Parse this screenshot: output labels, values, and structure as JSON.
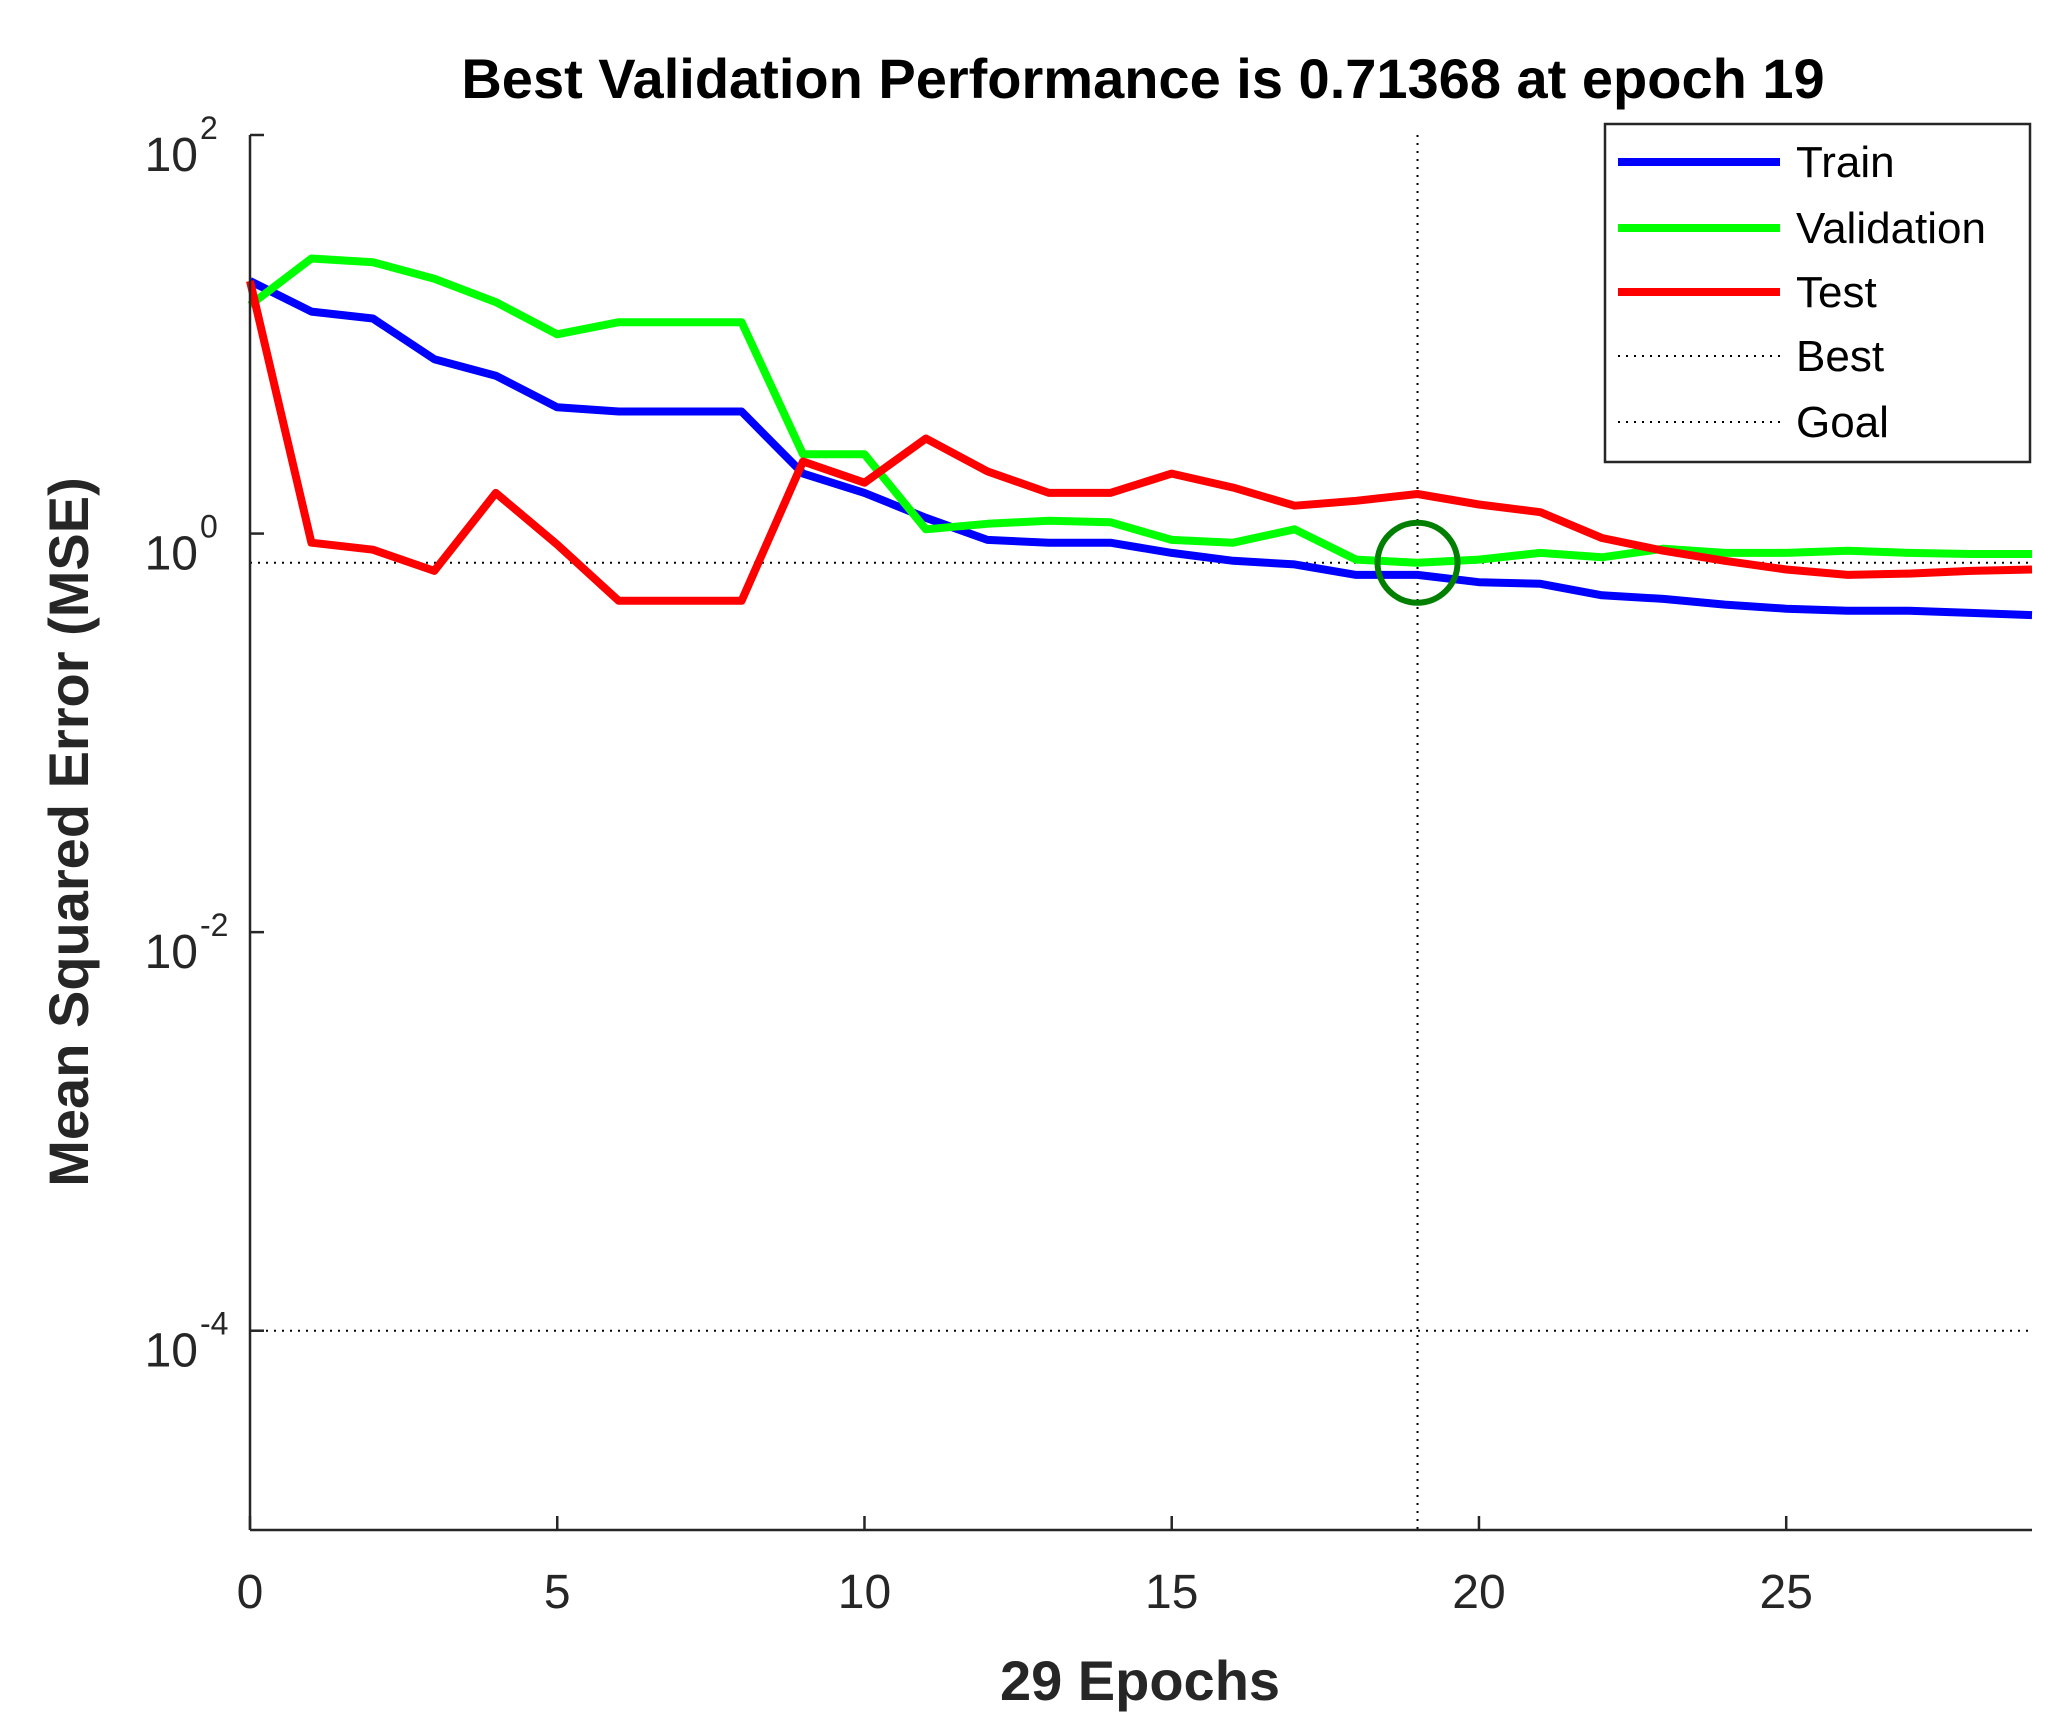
{
  "chart_data": {
    "type": "line",
    "title": "Best Validation Performance is 0.71368 at epoch 19",
    "xlabel": "29 Epochs",
    "ylabel": "Mean Squared Error  (MSE)",
    "yscale": "log",
    "xlim": [
      0,
      29
    ],
    "ylim": [
      1e-05,
      100
    ],
    "x_ticks": [
      "0",
      "5",
      "10",
      "15",
      "20",
      "25"
    ],
    "y_ticks": [
      {
        "base": "10",
        "exp": "2",
        "value": 100
      },
      {
        "base": "10",
        "exp": "0",
        "value": 1
      },
      {
        "base": "10",
        "exp": "-2",
        "value": 0.01
      },
      {
        "base": "10",
        "exp": "-4",
        "value": 0.0001
      }
    ],
    "x": [
      0,
      1,
      2,
      3,
      4,
      5,
      6,
      7,
      8,
      9,
      10,
      11,
      12,
      13,
      14,
      15,
      16,
      17,
      18,
      19,
      20,
      21,
      22,
      23,
      24,
      25,
      26,
      27,
      28,
      29
    ],
    "series": [
      {
        "name": "Train",
        "color": "#0000ff",
        "values": [
          18.5,
          13,
          12,
          7.5,
          6.2,
          4.3,
          4.1,
          4.1,
          4.1,
          2.0,
          1.6,
          1.2,
          0.93,
          0.9,
          0.9,
          0.8,
          0.73,
          0.7,
          0.62,
          0.62,
          0.57,
          0.56,
          0.49,
          0.47,
          0.44,
          0.42,
          0.41,
          0.41,
          0.4,
          0.39
        ]
      },
      {
        "name": "Validation",
        "color": "#00ff00",
        "values": [
          14,
          24,
          23,
          19,
          14.5,
          10,
          11.5,
          11.5,
          11.5,
          2.5,
          2.5,
          1.05,
          1.12,
          1.16,
          1.14,
          0.93,
          0.9,
          1.05,
          0.74,
          0.71368,
          0.74,
          0.8,
          0.76,
          0.84,
          0.8,
          0.8,
          0.82,
          0.8,
          0.79,
          0.79
        ]
      },
      {
        "name": "Test",
        "color": "#ff0000",
        "values": [
          18.5,
          0.9,
          0.83,
          0.65,
          1.6,
          0.88,
          0.46,
          0.46,
          0.46,
          2.3,
          1.8,
          3.0,
          2.05,
          1.6,
          1.6,
          2.0,
          1.7,
          1.38,
          1.46,
          1.58,
          1.4,
          1.28,
          0.95,
          0.82,
          0.73,
          0.66,
          0.62,
          0.63,
          0.65,
          0.66
        ]
      }
    ],
    "best": {
      "label": "Best",
      "epoch": 19,
      "value": 0.71368,
      "color": "#000000"
    },
    "goal": {
      "label": "Goal",
      "value": 0.0001,
      "color": "#000000"
    },
    "marker_color": "#007f00",
    "legend": {
      "placement": "top-right",
      "entries": [
        "Train",
        "Validation",
        "Test",
        "Best",
        "Goal"
      ]
    }
  }
}
